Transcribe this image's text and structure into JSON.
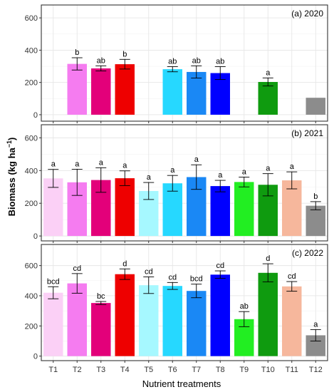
{
  "figure": {
    "xlabel": "Nutrient treatments",
    "ylabel_main": "Biomass (kg ha",
    "ylabel_sup": "−1",
    "ylabel_close": ")"
  },
  "colors": {
    "background": "#ffffff",
    "panel_border": "#333333",
    "grid": "#e6e6e6",
    "axis_text": "#333333",
    "T1": "#fbd0f6",
    "T2": "#f57cf0",
    "T3": "#e3007a",
    "T4": "#ee0000",
    "T5": "#a6f8ff",
    "T6": "#26d8ff",
    "T7": "#1a88f5",
    "T8": "#0000ff",
    "T9": "#22ee22",
    "T10": "#0f9b0f",
    "T11": "#f6b79c",
    "T12": "#8c8c8c"
  },
  "chart_data": [
    {
      "type": "bar",
      "title": "(a) 2020",
      "categories": [
        "T1",
        "T2",
        "T3",
        "T4",
        "T5",
        "T6",
        "T7",
        "T8",
        "T9",
        "T10",
        "T11",
        "T12"
      ],
      "values": [
        null,
        315,
        287,
        313,
        null,
        282,
        265,
        258,
        null,
        203,
        null,
        105
      ],
      "errors": [
        null,
        38,
        16,
        30,
        null,
        16,
        38,
        40,
        null,
        25,
        null,
        null
      ],
      "letters": [
        "",
        "b",
        "ab",
        "b",
        "",
        "ab",
        "ab",
        "ab",
        "",
        "a",
        "",
        ""
      ],
      "ylim": [
        -40,
        680
      ],
      "yticks": [
        0,
        200,
        400,
        600
      ],
      "grid": true
    },
    {
      "type": "bar",
      "title": "(b) 2021",
      "categories": [
        "T1",
        "T2",
        "T3",
        "T4",
        "T5",
        "T6",
        "T7",
        "T8",
        "T9",
        "T10",
        "T11",
        "T12"
      ],
      "values": [
        352,
        328,
        342,
        353,
        275,
        322,
        360,
        305,
        330,
        313,
        340,
        185
      ],
      "errors": [
        55,
        80,
        75,
        45,
        52,
        48,
        75,
        35,
        30,
        68,
        52,
        25
      ],
      "letters": [
        "a",
        "a",
        "a",
        "a",
        "a",
        "a",
        "a",
        "a",
        "a",
        "a",
        "a",
        "b"
      ],
      "ylim": [
        -30,
        680
      ],
      "yticks": [
        0,
        200,
        400,
        600
      ],
      "grid": true
    },
    {
      "type": "bar",
      "title": "(c) 2022",
      "categories": [
        "T1",
        "T2",
        "T3",
        "T4",
        "T5",
        "T6",
        "T7",
        "T8",
        "T9",
        "T10",
        "T11",
        "T12"
      ],
      "values": [
        420,
        482,
        352,
        543,
        470,
        465,
        432,
        540,
        245,
        552,
        462,
        138
      ],
      "errors": [
        40,
        65,
        10,
        35,
        55,
        23,
        45,
        25,
        50,
        60,
        32,
        38
      ],
      "letters": [
        "bcd",
        "cd",
        "bc",
        "d",
        "cd",
        "cd",
        "bcd",
        "cd",
        "ab",
        "d",
        "cd",
        "a"
      ],
      "ylim": [
        -30,
        740
      ],
      "yticks": [
        0,
        200,
        400,
        600
      ],
      "grid": true
    }
  ]
}
